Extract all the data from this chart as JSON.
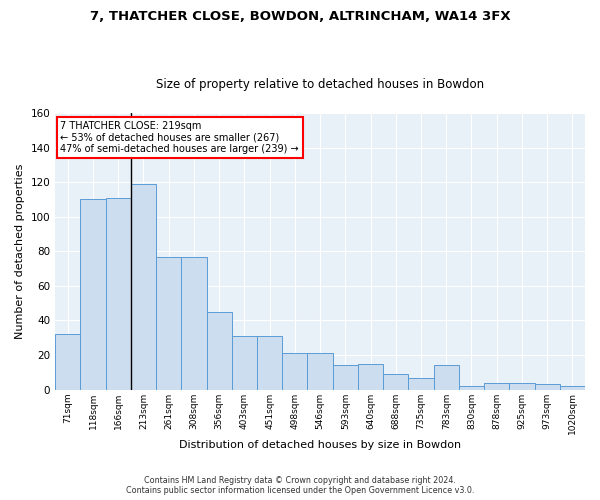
{
  "title1": "7, THATCHER CLOSE, BOWDON, ALTRINCHAM, WA14 3FX",
  "title2": "Size of property relative to detached houses in Bowdon",
  "xlabel": "Distribution of detached houses by size in Bowdon",
  "ylabel": "Number of detached properties",
  "categories": [
    "71sqm",
    "118sqm",
    "166sqm",
    "213sqm",
    "261sqm",
    "308sqm",
    "356sqm",
    "403sqm",
    "451sqm",
    "498sqm",
    "546sqm",
    "593sqm",
    "640sqm",
    "688sqm",
    "735sqm",
    "783sqm",
    "830sqm",
    "878sqm",
    "925sqm",
    "973sqm",
    "1020sqm"
  ],
  "values": [
    32,
    110,
    111,
    119,
    77,
    77,
    45,
    31,
    31,
    21,
    21,
    14,
    15,
    9,
    7,
    14,
    2,
    4,
    4,
    3,
    2
  ],
  "bar_color": "#ccddf0",
  "bar_edge_color": "#5b9bd5",
  "vline_index": 3,
  "annotation_text": "7 THATCHER CLOSE: 219sqm\n← 53% of detached houses are smaller (267)\n47% of semi-detached houses are larger (239) →",
  "annotation_box_color": "white",
  "annotation_box_edge": "red",
  "footer1": "Contains HM Land Registry data © Crown copyright and database right 2024.",
  "footer2": "Contains public sector information licensed under the Open Government Licence v3.0.",
  "ylim": [
    0,
    160
  ],
  "yticks": [
    0,
    20,
    40,
    60,
    80,
    100,
    120,
    140,
    160
  ],
  "bg_color": "#e8f0f8",
  "grid_color": "white",
  "title1_fontsize": 9.5,
  "title2_fontsize": 8.5,
  "bar_fontsize": 6.5,
  "ylabel_fontsize": 8,
  "xlabel_fontsize": 8
}
